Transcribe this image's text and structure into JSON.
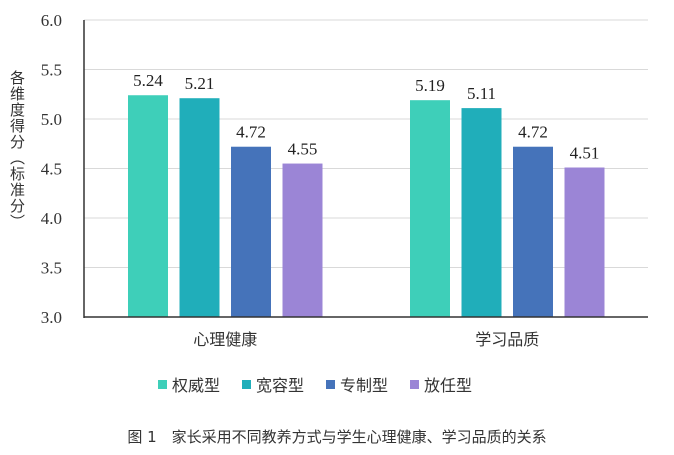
{
  "chart_data": {
    "type": "bar",
    "title": "",
    "xlabel": "",
    "ylabel": "各维度得分（标准分）",
    "ylim": [
      3.0,
      6.0
    ],
    "yticks": [
      "3.0",
      "3.5",
      "4.0",
      "4.5",
      "5.0",
      "5.5",
      "6.0"
    ],
    "grid": true,
    "legend_position": "bottom",
    "categories": [
      "心理健康",
      "学习品质"
    ],
    "series": [
      {
        "name": "权威型",
        "color": "#3ECFB9",
        "values": [
          5.24,
          5.19
        ]
      },
      {
        "name": "宽容型",
        "color": "#20AEBA",
        "values": [
          5.21,
          5.11
        ]
      },
      {
        "name": "专制型",
        "color": "#4573BA",
        "values": [
          4.72,
          4.72
        ]
      },
      {
        "name": "放任型",
        "color": "#9B85D6",
        "values": [
          4.55,
          4.51
        ]
      }
    ]
  },
  "caption": "图 1　家长采用不同教养方式与学生心理健康、学习品质的关系"
}
